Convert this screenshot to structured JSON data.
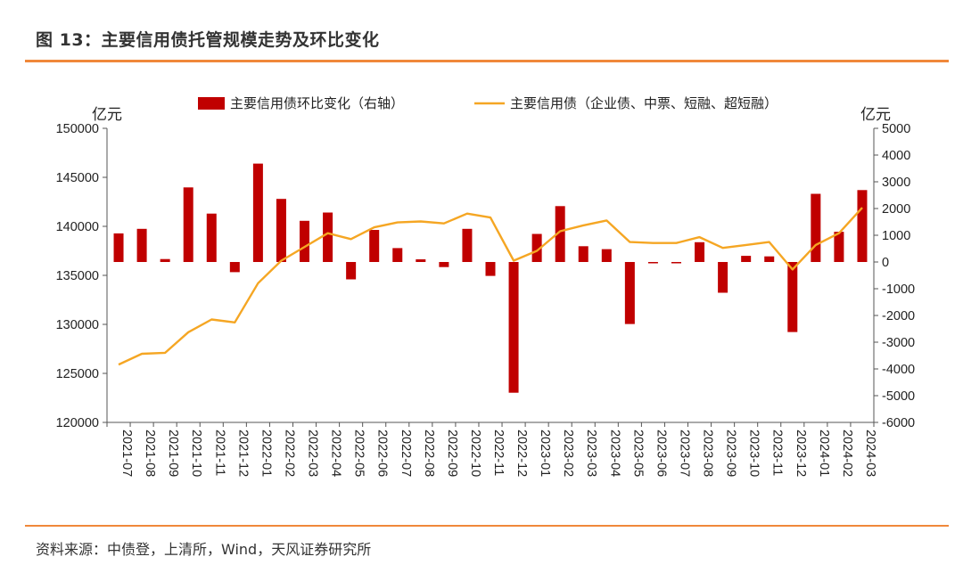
{
  "figure_title": "图 13：主要信用债托管规模走势及环比变化",
  "source_note": "资料来源：中债登，上清所，Wind，天风证券研究所",
  "colors": {
    "bar": "#c00000",
    "line": "#f5a623",
    "rule": "#f0883a"
  },
  "chart_data": {
    "type": "bar",
    "legend_position": "top",
    "grid": false,
    "left_axis": {
      "unit": "亿元",
      "ylim": [
        120000,
        150000
      ],
      "ticks": [
        "150000",
        "145000",
        "140000",
        "135000",
        "130000",
        "125000",
        "120000"
      ]
    },
    "right_axis": {
      "unit": "亿元",
      "ylim": [
        -6000,
        5000
      ],
      "ticks": [
        "5000",
        "4000",
        "3000",
        "2000",
        "1000",
        "0",
        "-1000",
        "-2000",
        "-3000",
        "-4000",
        "-5000",
        "-6000"
      ]
    },
    "categories": [
      "2021-07",
      "2021-08",
      "2021-09",
      "2021-10",
      "2021-11",
      "2021-12",
      "2022-01",
      "2022-02",
      "2022-03",
      "2022-04",
      "2022-05",
      "2022-06",
      "2022-07",
      "2022-08",
      "2022-09",
      "2022-10",
      "2022-11",
      "2022-12",
      "2023-01",
      "2023-02",
      "2023-03",
      "2023-04",
      "2023-05",
      "2023-06",
      "2023-07",
      "2023-08",
      "2023-09",
      "2023-10",
      "2023-11",
      "2023-12",
      "2024-01",
      "2024-02",
      "2024-03"
    ],
    "series": [
      {
        "name": "主要信用债环比变化（右轴）",
        "type": "bar",
        "axis": "right",
        "values": [
          1070,
          1240,
          110,
          2790,
          1810,
          -380,
          3680,
          2360,
          1540,
          1850,
          -650,
          1200,
          520,
          100,
          -190,
          1240,
          -520,
          -4890,
          1050,
          2090,
          590,
          480,
          -2320,
          -50,
          -50,
          740,
          -1150,
          230,
          210,
          -2620,
          2550,
          1130,
          2690
        ]
      },
      {
        "name": "主要信用债（企业债、中票、短融、超短融）",
        "type": "line",
        "axis": "left",
        "values": [
          125900,
          127000,
          127100,
          129200,
          130500,
          130200,
          134200,
          136500,
          137900,
          139300,
          138700,
          139900,
          140400,
          140500,
          140300,
          141300,
          140900,
          136500,
          137500,
          139500,
          140100,
          140600,
          138400,
          138300,
          138300,
          138900,
          137800,
          138100,
          138400,
          135600,
          138100,
          139300,
          141900
        ]
      }
    ]
  }
}
